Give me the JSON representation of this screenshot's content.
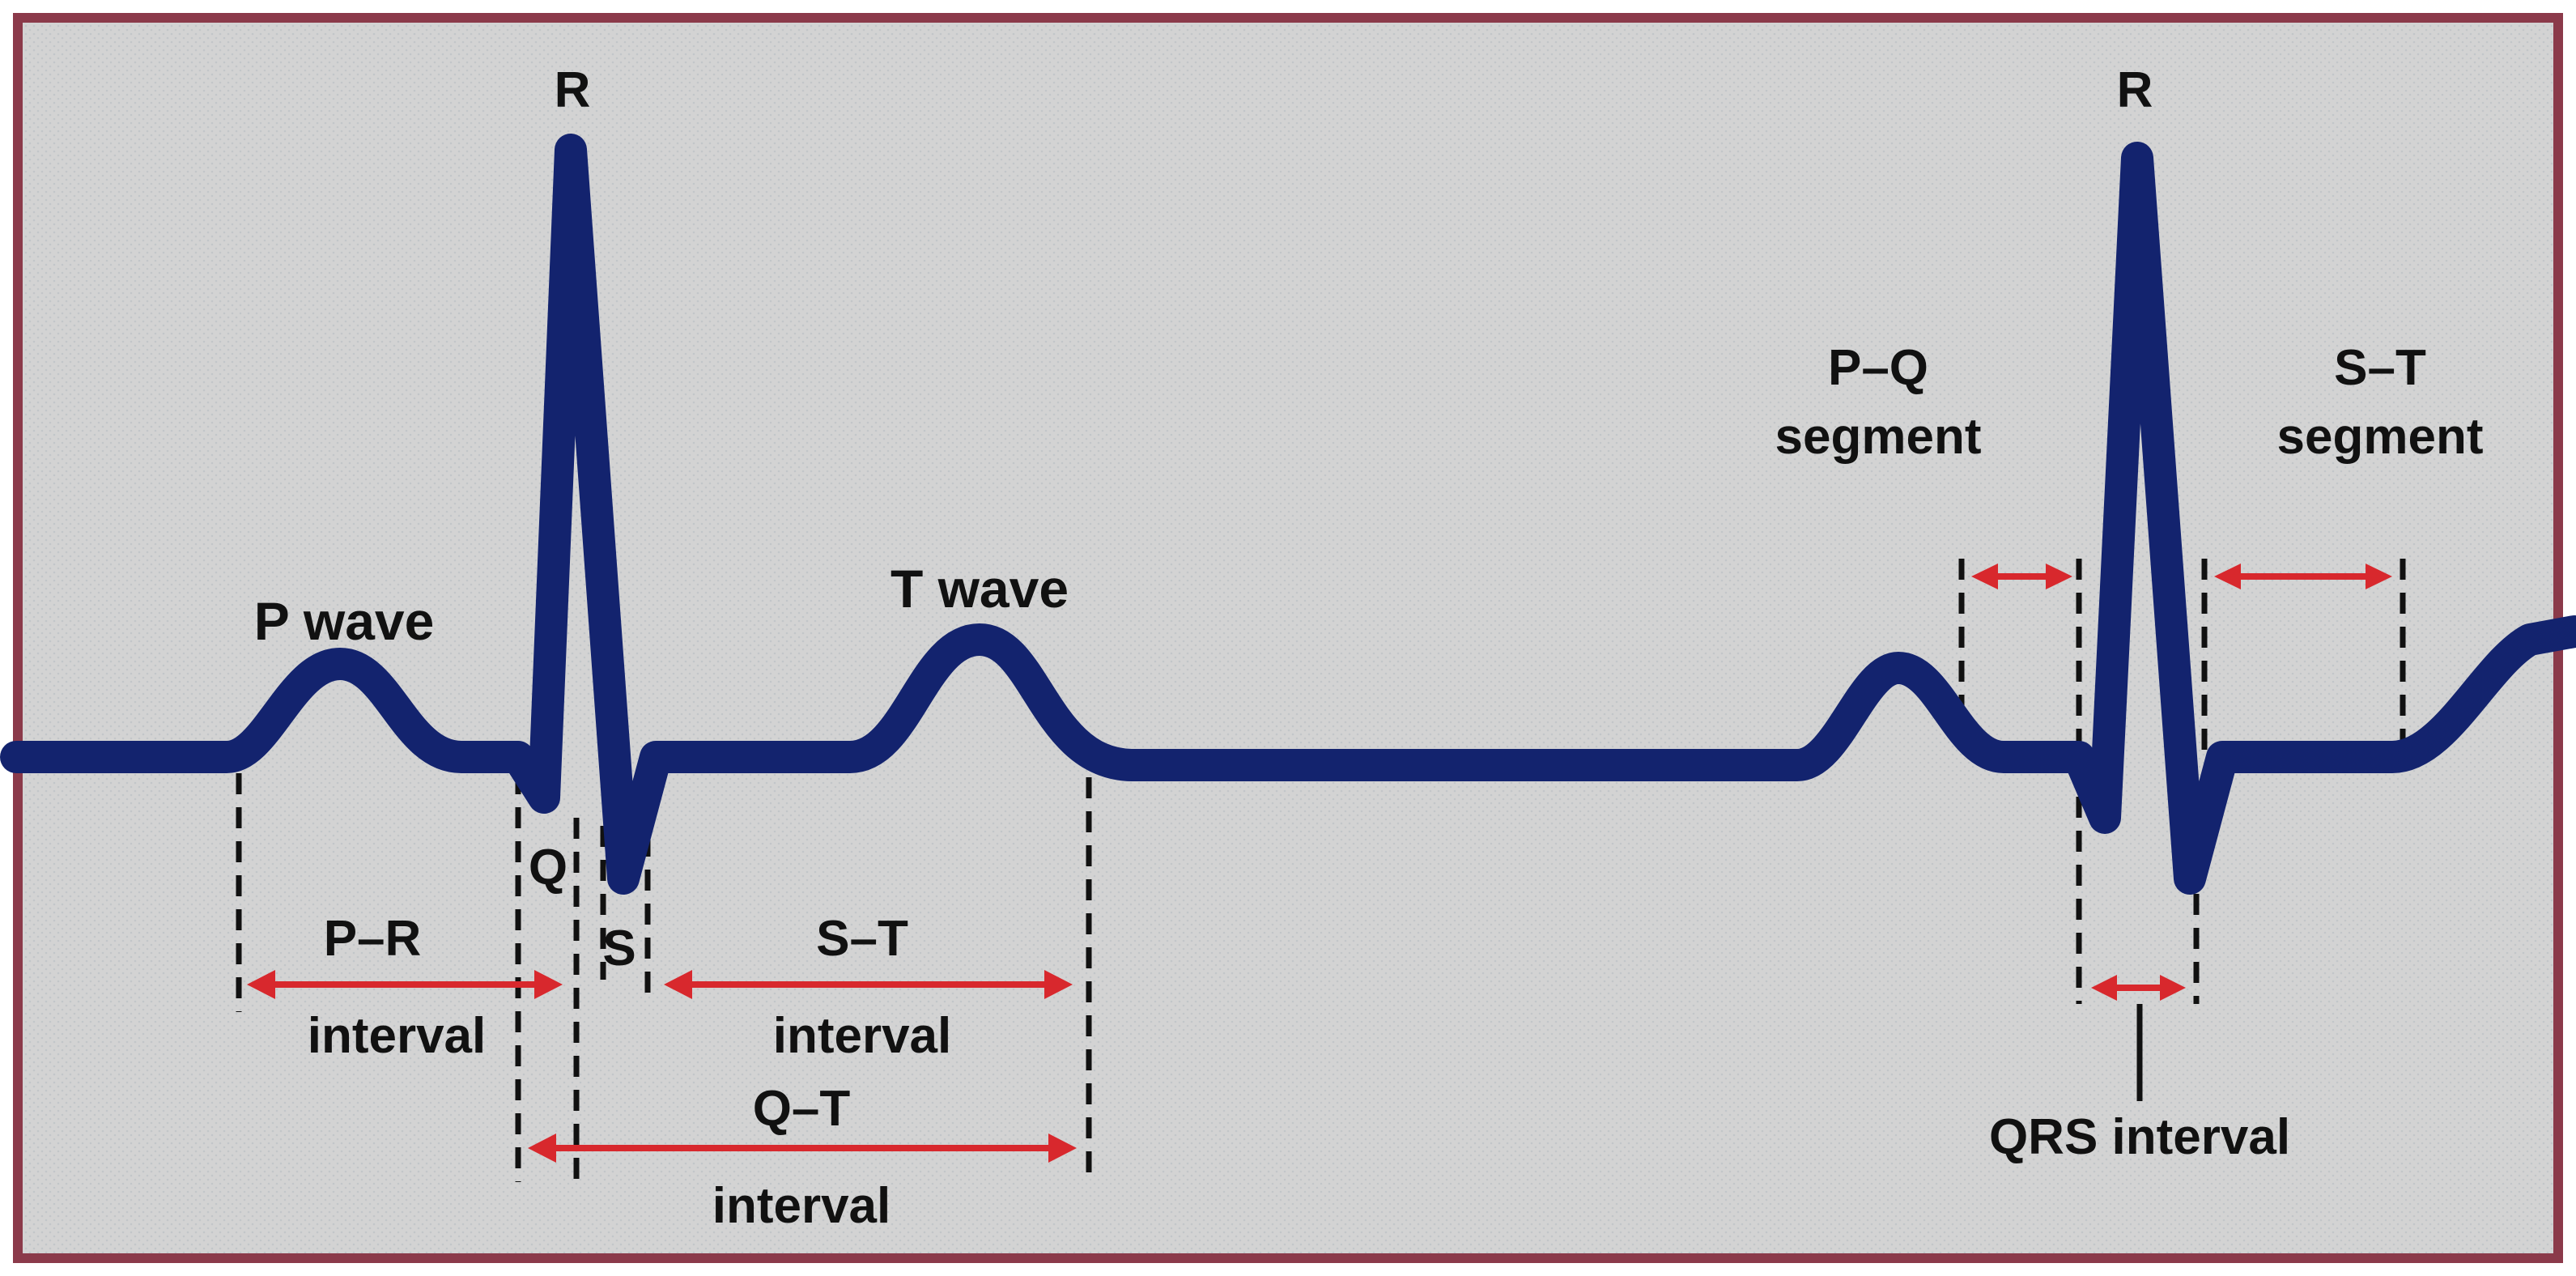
{
  "colors": {
    "background": "#d3d3d3",
    "border": "#8b3a4a",
    "trace": "#13236e",
    "arrow": "#d8282d",
    "guide": "#111111"
  },
  "labels": {
    "r_first": "R",
    "r_second": "R",
    "p_wave": "P wave",
    "t_wave": "T wave",
    "q": "Q",
    "s": "S",
    "pr_line1": "P–R",
    "pr_line2": "interval",
    "st_interval_line1": "S–T",
    "st_interval_line2": "interval",
    "qt_line1": "Q–T",
    "qt_line2": "interval",
    "pq_line1": "P–Q",
    "pq_line2": "segment",
    "st_segment_line1": "S–T",
    "st_segment_line2": "segment",
    "qrs": "QRS interval"
  }
}
